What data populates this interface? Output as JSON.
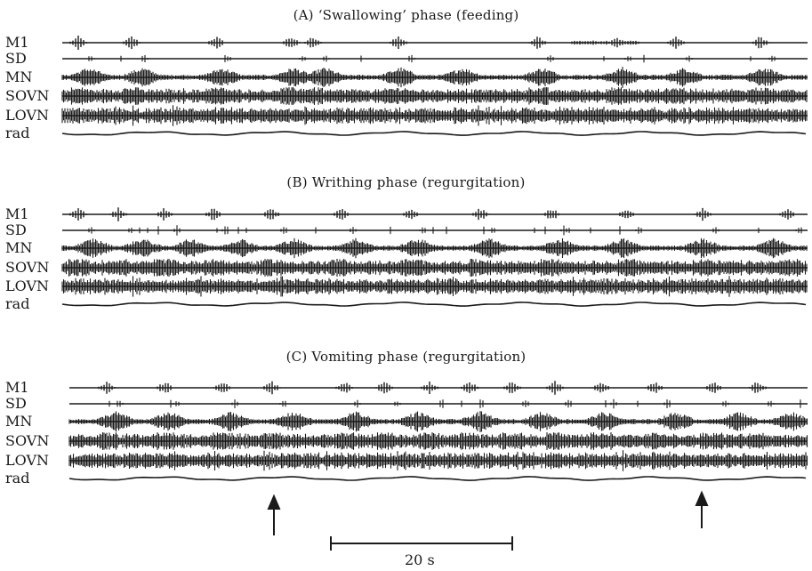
{
  "panels": [
    {
      "title": "(A)  ‘Swallowing’ phase (feeding)"
    },
    {
      "title": "(B)  Writhing phase (regurgitation)"
    },
    {
      "title": "(C)  Vomiting phase (regurgitation)"
    }
  ],
  "traces": [
    "M1",
    "SD",
    "MN",
    "SOVN",
    "LOVN",
    "rad"
  ],
  "scale_bar": {
    "label": "20 s",
    "duration_s": 20
  },
  "colors": {
    "ink": "#1a1a1a",
    "background": "#ffffff"
  }
}
